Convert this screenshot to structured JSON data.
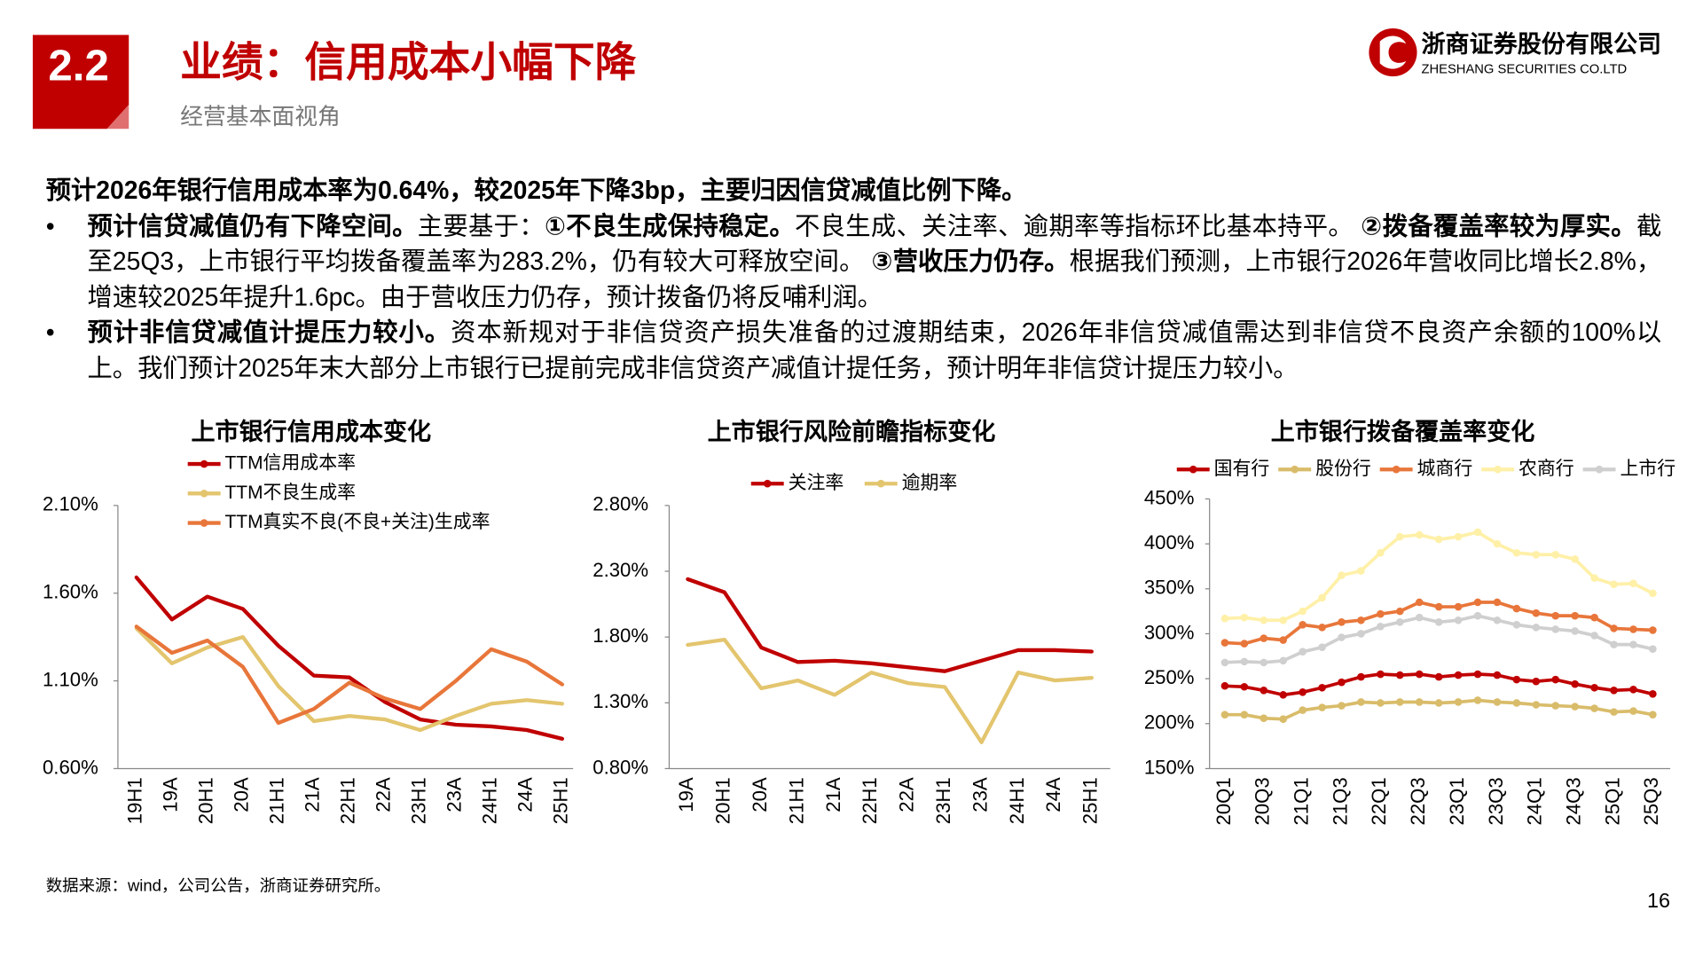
{
  "header": {
    "section": "2.2",
    "title": "业绩：信用成本小幅下降",
    "subtitle": "经营基本面视角"
  },
  "logo": {
    "name": "浙商证券股份有限公司",
    "name_en": "ZHESHANG SECURITIES CO.LTD"
  },
  "body": {
    "lead": "预计2026年银行信用成本率为0.64%，较2025年下降3bp，主要归因信贷减值比例下降。",
    "bullets": [
      [
        {
          "text": "预计信贷减值仍有下降空间。",
          "bold": true
        },
        {
          "text": "主要基于：",
          "bold": false
        },
        {
          "text": "①不良生成保持稳定。",
          "bold": true
        },
        {
          "text": "不良生成、关注率、逾期率等指标环比基本持平。 ",
          "bold": false
        },
        {
          "text": "②拨备覆盖率较为厚实。",
          "bold": true
        },
        {
          "text": "截至25Q3，上市银行平均拨备覆盖率为283.2%，仍有较大可释放空间。 ",
          "bold": false
        },
        {
          "text": "③营收压力仍存。",
          "bold": true
        },
        {
          "text": "根据我们预测，上市银行2026年营收同比增长2.8%，增速较2025年提升1.6pc。由于营收压力仍存，预计拨备仍将反哺利润。",
          "bold": false
        }
      ],
      [
        {
          "text": "预计非信贷减值计提压力较小。",
          "bold": true
        },
        {
          "text": "资本新规对于非信贷资产损失准备的过渡期结束，2026年非信贷减值需达到非信贷不良资产余额的100%以上。我们预计2025年末大部分上市银行已提前完成非信贷资产减值计提任务，预计明年非信贷计提压力较小。",
          "bold": false
        }
      ]
    ]
  },
  "source": "数据来源：wind，公司公告，浙商证券研究所。",
  "page_number": 16,
  "chart_data": [
    {
      "type": "line",
      "title": "上市银行信用成本变化",
      "legend": "top-left",
      "categories": [
        "19H1",
        "19A",
        "20H1",
        "20A",
        "21H1",
        "21A",
        "22H1",
        "22A",
        "23H1",
        "23A",
        "24H1",
        "24A",
        "25H1"
      ],
      "series": [
        {
          "name": "TTM信用成本率",
          "color": "#c00000",
          "values": [
            1.69,
            1.45,
            1.58,
            1.51,
            1.3,
            1.13,
            1.12,
            0.98,
            0.88,
            0.85,
            0.84,
            0.82,
            0.77
          ]
        },
        {
          "name": "TTM不良生成率",
          "color": "#e3c56e",
          "values": [
            1.4,
            1.2,
            1.29,
            1.35,
            1.07,
            0.87,
            0.9,
            0.88,
            0.82,
            0.9,
            0.97,
            0.99,
            0.97
          ]
        },
        {
          "name": "TTM真实不良(不良+关注)生成率",
          "color": "#e8763a",
          "values": [
            1.41,
            1.26,
            1.33,
            1.18,
            0.86,
            0.94,
            1.09,
            1.0,
            0.94,
            1.1,
            1.28,
            1.21,
            1.08
          ]
        }
      ],
      "ylim": [
        0.6,
        2.1
      ],
      "yticks": [
        {
          "value": 0.6,
          "label": "0.60%"
        },
        {
          "value": 1.1,
          "label": "1.10%"
        },
        {
          "value": 1.6,
          "label": "1.60%"
        },
        {
          "value": 2.1,
          "label": "2.10%"
        }
      ],
      "markers": false
    },
    {
      "type": "line",
      "title": "上市银行风险前瞻指标变化",
      "legend": "top",
      "categories": [
        "19A",
        "20H1",
        "20A",
        "21H1",
        "21A",
        "22H1",
        "22A",
        "23H1",
        "23A",
        "24H1",
        "24A",
        "25H1"
      ],
      "series": [
        {
          "name": "关注率",
          "color": "#c00000",
          "values": [
            2.24,
            2.14,
            1.72,
            1.61,
            1.62,
            1.6,
            1.57,
            1.54,
            1.62,
            1.7,
            1.7,
            1.69
          ]
        },
        {
          "name": "逾期率",
          "color": "#e3c56e",
          "values": [
            1.74,
            1.78,
            1.41,
            1.47,
            1.36,
            1.53,
            1.45,
            1.42,
            1.0,
            1.53,
            1.47,
            1.49
          ]
        }
      ],
      "ylim": [
        0.8,
        2.8
      ],
      "yticks": [
        {
          "value": 0.8,
          "label": "0.80%"
        },
        {
          "value": 1.3,
          "label": "1.30%"
        },
        {
          "value": 1.8,
          "label": "1.80%"
        },
        {
          "value": 2.3,
          "label": "2.30%"
        },
        {
          "value": 2.8,
          "label": "2.80%"
        }
      ],
      "markers": false
    },
    {
      "type": "line",
      "title": "上市银行拨备覆盖率变化",
      "legend": "top",
      "categories": [
        "20Q1",
        null,
        "20Q3",
        null,
        "21Q1",
        null,
        "21Q3",
        null,
        "22Q1",
        null,
        "22Q3",
        null,
        "23Q1",
        null,
        "23Q3",
        null,
        "24Q1",
        null,
        "24Q3",
        null,
        "25Q1",
        null,
        "25Q3"
      ],
      "series": [
        {
          "name": "国有行",
          "color": "#c00000",
          "values": [
            242,
            241,
            237,
            232,
            235,
            240,
            246,
            252,
            255,
            254,
            255,
            252,
            254,
            255,
            254,
            249,
            247,
            249,
            244,
            240,
            237,
            238,
            233
          ]
        },
        {
          "name": "股份行",
          "color": "#d9bc6a",
          "values": [
            210,
            210,
            206,
            205,
            215,
            218,
            220,
            224,
            223,
            224,
            224,
            223,
            224,
            226,
            224,
            223,
            221,
            220,
            219,
            217,
            213,
            214,
            210
          ]
        },
        {
          "name": "城商行",
          "color": "#e8763a",
          "values": [
            290,
            289,
            295,
            293,
            310,
            307,
            313,
            315,
            322,
            325,
            335,
            330,
            330,
            335,
            335,
            328,
            323,
            320,
            320,
            318,
            306,
            305,
            304
          ]
        },
        {
          "name": "农商行",
          "color": "#fff0a8",
          "values": [
            317,
            318,
            315,
            315,
            325,
            340,
            365,
            370,
            390,
            408,
            410,
            405,
            408,
            413,
            400,
            390,
            388,
            388,
            383,
            362,
            355,
            356,
            345
          ]
        },
        {
          "name": "上市行",
          "color": "#cfcfcf",
          "values": [
            268,
            269,
            268,
            270,
            280,
            285,
            296,
            300,
            308,
            313,
            318,
            313,
            315,
            320,
            315,
            310,
            307,
            305,
            303,
            298,
            288,
            288,
            283
          ]
        }
      ],
      "ylim": [
        150,
        450
      ],
      "yticks": [
        {
          "value": 150,
          "label": "150%"
        },
        {
          "value": 200,
          "label": "200%"
        },
        {
          "value": 250,
          "label": "250%"
        },
        {
          "value": 300,
          "label": "300%"
        },
        {
          "value": 350,
          "label": "350%"
        },
        {
          "value": 400,
          "label": "400%"
        },
        {
          "value": 450,
          "label": "450%"
        }
      ],
      "markers": true
    }
  ]
}
